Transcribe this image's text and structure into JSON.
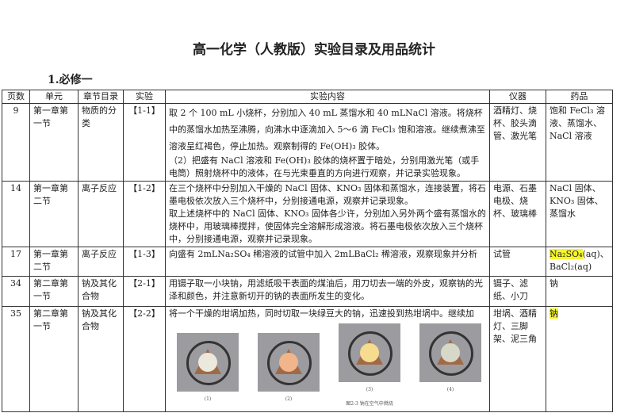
{
  "title": "高一化学（人教版）实验目录及用品统计",
  "section": "1.必修一",
  "columns": [
    "页数",
    "单元",
    "章节目录",
    "实验",
    "实验内容",
    "仪器",
    "药品"
  ],
  "rows": [
    {
      "page": "9",
      "unit": "第一章第一节",
      "chapter": "物质的分类",
      "exp": "【1-1】",
      "content": [
        "取 2 个 100 mL 小烧杯，分别加入 40 mL 蒸馏水和 40 mLNaCl 溶液。将烧杯中的蒸馏水加热至沸腾，向沸水中逐滴加入 5～6 滴 FeCl₃ 饱和溶液。继续煮沸至溶液呈红褐色，停止加热。观察制得的 Fe(OH)₃ 胶体。",
        "（2）把盛有 NaCl 溶液和 Fe(OH)₃ 胶体的烧杯置于暗处，分别用激光笔（或手电筒）照射烧杯中的液体，在与光束垂直的方向进行观察，并记录实验现象。"
      ],
      "instruments": "酒精灯、烧杯、胶头滴管、激光笔",
      "reagents": "饱和 FeCl₃ 溶液、蒸馏水、NaCl 溶液"
    },
    {
      "page": "14",
      "unit": "第一章第二节",
      "chapter": "离子反应",
      "exp": "【1-2】",
      "content": [
        "在三个烧杯中分别加入干燥的 NaCl 固体、KNO₃ 固体和蒸馏水，连接装置，将石墨电极依次放入三个烧杯中，分别接通电源，观察并记录现象。",
        "取上述烧杯中的 NaCl 固体、KNO₃ 固体各少许，分别加入另外两个盛有蒸馏水的烧杯中，用玻璃棒搅拌，使固体完全溶解形成溶液。将石墨电极依次放入三个烧杯中，分别接通电源，观察并记录现象。"
      ],
      "instruments": "电源、石墨电极、烧杯、玻璃棒",
      "reagents": "NaCl 固体、KNO₃ 固体、蒸馏水"
    },
    {
      "page": "17",
      "unit": "第一章第二节",
      "chapter": "离子反应",
      "exp": "【1-3】",
      "content": [
        "向盛有 2mLNa₂SO₄ 稀溶液的试管中加入 2mLBaCl₂ 稀溶液，观察现象并分析"
      ],
      "instruments": "试管",
      "reagents_hl": "Na₂SO₄",
      "reagents": "(aq)、BaCl₂(aq)"
    },
    {
      "page": "34",
      "unit": "第二章第一节",
      "chapter": "钠及其化合物",
      "exp": "【2-1】",
      "content": [
        "用镊子取一小块钠，用滤纸吸干表面的煤油后，用刀切去一端的外皮，观察钠的光泽和颜色，并注意新切开的钠的表面所发生的变化。"
      ],
      "instruments": "镊子、滤纸、小刀",
      "reagents": "钠"
    },
    {
      "page": "35",
      "unit": "第二章第一节",
      "chapter": "钠及其化合物",
      "exp": "【2-2】",
      "content": [
        "将一个干燥的坩埚加热，同时切取一块绿豆大的钠，迅速投到热坩埚中。继续加"
      ],
      "instruments": "坩埚、酒精灯、三脚架、泥三角",
      "reagents_hl": "钠",
      "photo_captions": [
        "(1)",
        "(2)",
        "(3)",
        "(4)"
      ],
      "figure_caption": "图2-3 钠在空气中燃烧"
    }
  ],
  "colors": {
    "highlight": "#f5f52a"
  }
}
